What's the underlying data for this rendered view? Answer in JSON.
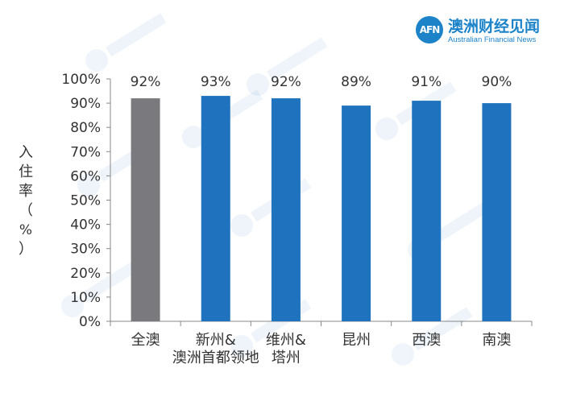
{
  "brand": {
    "logo_mark": "AFN",
    "name_cn": "澳洲财经见闻",
    "name_en": "Australian Financial News",
    "color": "#1d83c9"
  },
  "chart_data": {
    "type": "bar",
    "ylabel_chars": [
      "入",
      "住",
      "率",
      "（",
      "%",
      "）"
    ],
    "ylabel": "入住率（%）",
    "xlabel": "",
    "ylim": [
      0,
      100
    ],
    "ytick_step": 10,
    "ytick_suffix": "%",
    "grid": false,
    "categories": [
      [
        "全澳"
      ],
      [
        "新州&",
        "澳洲首都领地"
      ],
      [
        "维州&",
        "塔州"
      ],
      [
        "昆州"
      ],
      [
        "西澳"
      ],
      [
        "南澳"
      ]
    ],
    "values": [
      92,
      93,
      92,
      89,
      91,
      90
    ],
    "value_labels": [
      "92%",
      "93%",
      "92%",
      "89%",
      "91%",
      "90%"
    ],
    "colors": [
      "#7a797d",
      "#1f72bd",
      "#1f72bd",
      "#1f72bd",
      "#1f72bd",
      "#1f72bd"
    ]
  }
}
